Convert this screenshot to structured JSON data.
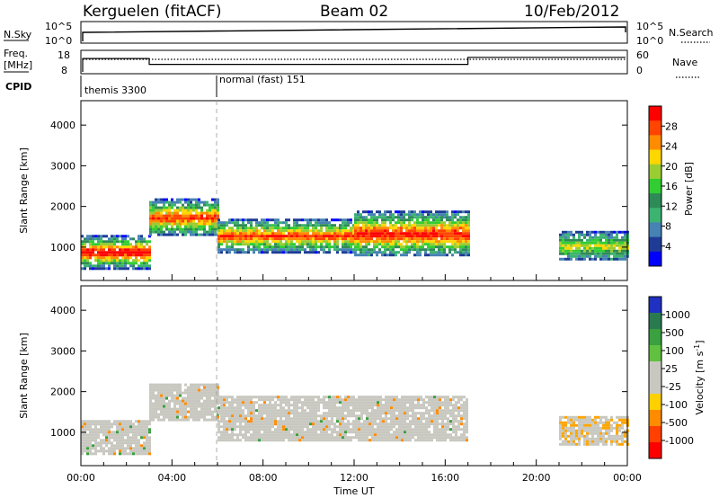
{
  "header": {
    "station": "Kerguelen (fitACF)",
    "beam": "Beam 02",
    "date": "10/Feb/2012"
  },
  "aux_panels": {
    "nsky_label": "N.Sky",
    "nsearch_label": "N.Search",
    "nsky_ticks": [
      "10^5",
      "10^0"
    ],
    "nsearch_ticks": [
      "10^5",
      "10^0"
    ],
    "freq_label_1": "Freq.",
    "freq_label_2": "[MHz]",
    "freq_ticks": [
      "18",
      "8"
    ],
    "nave_label": "Nave",
    "nave_ticks": [
      "60",
      "0"
    ],
    "cpid_label": "CPID",
    "cpid_segments": [
      {
        "label": "themis 3300",
        "start_hour": 0
      },
      {
        "label": "normal (fast) 151",
        "start_hour": 6
      }
    ],
    "freq_steps": [
      {
        "from": 0,
        "to": 3,
        "mhz": 14.5
      },
      {
        "from": 3,
        "to": 17,
        "mhz": 12
      },
      {
        "from": 17,
        "to": 24,
        "mhz": 15
      }
    ]
  },
  "colorbars": {
    "power": {
      "label": "Power [dB]",
      "ticks": [
        "28",
        "24",
        "20",
        "16",
        "12",
        "8",
        "4"
      ],
      "colors": [
        "#ff0000",
        "#ff4500",
        "#ff8c00",
        "#ffd700",
        "#9acd32",
        "#32cd32",
        "#2e8b57",
        "#3cb371",
        "#4682b4",
        "#1e3c96",
        "#0000ff"
      ]
    },
    "velocity": {
      "label_main": "Velocity",
      "label_units": "[m s",
      "label_units_sup": "-1",
      "label_units_end": "]",
      "ticks": [
        "1000",
        "500",
        "100",
        "25",
        "-25",
        "-100",
        "-500",
        "-1000"
      ],
      "colors": [
        "#2030c0",
        "#2a7a50",
        "#3aa040",
        "#60c040",
        "#c8c8c0",
        "#c8c8c0",
        "#ffd000",
        "#ff8c00",
        "#ff4000",
        "#ff0000"
      ]
    }
  },
  "chart_data": [
    {
      "type": "heatmap",
      "title": "Power",
      "xlabel": "Time UT",
      "ylabel": "Slant Range [km]",
      "xlim_hours": [
        0,
        24
      ],
      "ylim_km": [
        180,
        4600
      ],
      "x_ticks": [
        "00:00",
        "04:00",
        "08:00",
        "12:00",
        "16:00",
        "20:00",
        "00:00"
      ],
      "y_ticks": [
        "1000",
        "2000",
        "3000",
        "4000"
      ],
      "bands": [
        {
          "from": 0,
          "to": 3,
          "range_km": [
            500,
            1300
          ],
          "power_db": 28
        },
        {
          "from": 3,
          "to": 6,
          "range_km": [
            1300,
            2200
          ],
          "power_db": 24
        },
        {
          "from": 6,
          "to": 12,
          "range_km": [
            900,
            1700
          ],
          "power_db": 24
        },
        {
          "from": 12,
          "to": 17,
          "range_km": [
            800,
            1900
          ],
          "power_db": 26
        },
        {
          "from": 21,
          "to": 24,
          "range_km": [
            700,
            1400
          ],
          "power_db": 16
        }
      ]
    },
    {
      "type": "heatmap",
      "title": "Velocity",
      "xlabel": "Time UT",
      "ylabel": "Slant Range [km]",
      "xlim_hours": [
        0,
        24
      ],
      "ylim_km": [
        180,
        4600
      ],
      "x_ticks": [
        "00:00",
        "04:00",
        "08:00",
        "12:00",
        "16:00",
        "20:00",
        "00:00"
      ],
      "y_ticks": [
        "1000",
        "2000",
        "3000",
        "4000"
      ],
      "bands": [
        {
          "from": 0,
          "to": 3,
          "range_km": [
            500,
            1300
          ],
          "velocity_ms": 0
        },
        {
          "from": 3,
          "to": 6,
          "range_km": [
            1300,
            2200
          ],
          "velocity_ms": 0
        },
        {
          "from": 6,
          "to": 17,
          "range_km": [
            800,
            1900
          ],
          "velocity_ms": 0
        },
        {
          "from": 21,
          "to": 24,
          "range_km": [
            700,
            1400
          ],
          "velocity_ms": -100
        }
      ]
    }
  ],
  "axis": {
    "x_title": "Time UT"
  }
}
